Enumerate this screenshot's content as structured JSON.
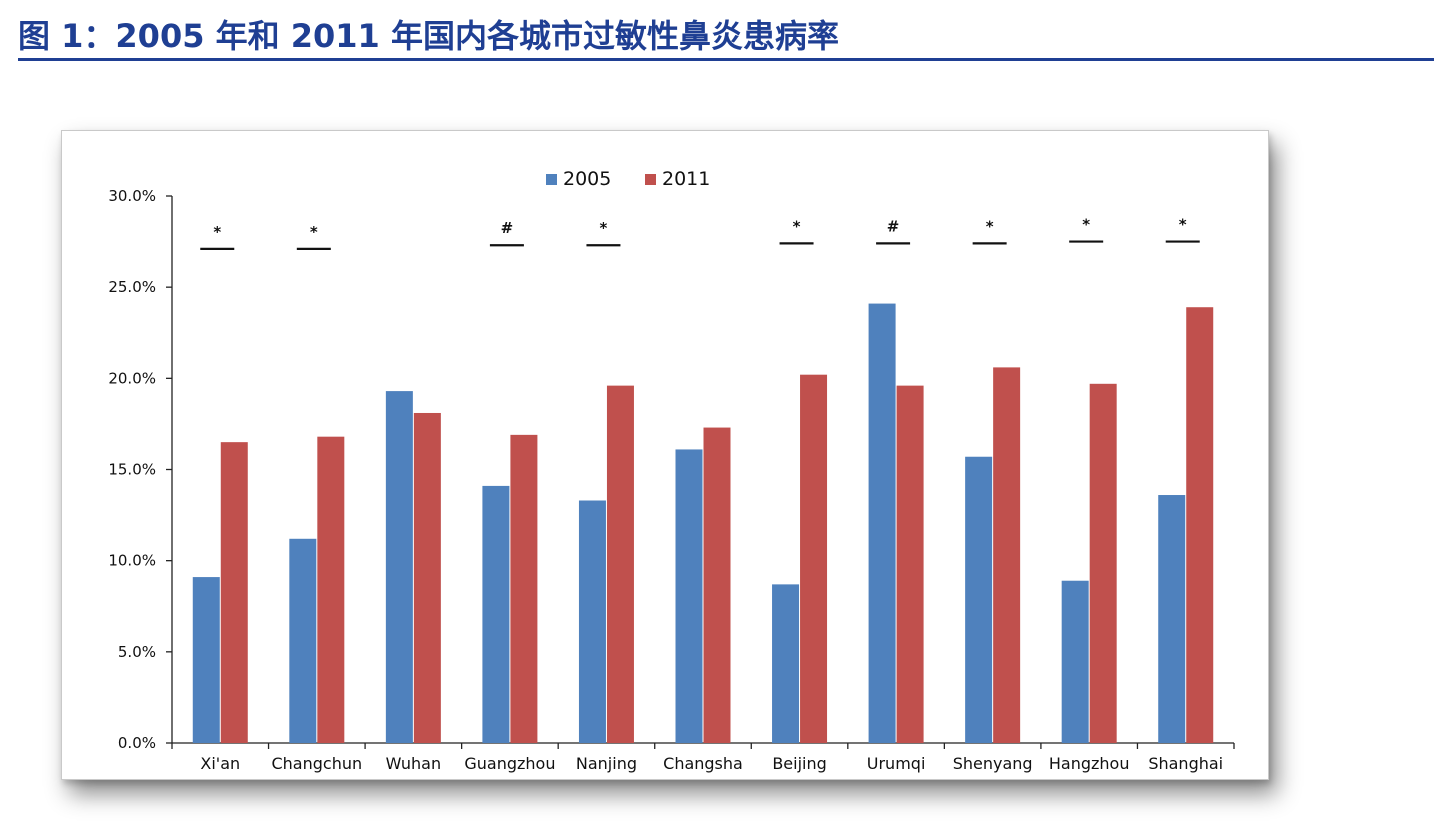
{
  "page": {
    "title": "图 1：2005 年和 2011 年国内各城市过敏性鼻炎患病率"
  },
  "colors": {
    "title": "#1f3f93",
    "series_2005": "#4f81bd",
    "series_2011": "#c0504d"
  },
  "chart_data": {
    "type": "bar",
    "title": "",
    "xlabel": "",
    "ylabel": "",
    "ylim": [
      0,
      30
    ],
    "y_ticks": [
      "0.0%",
      "5.0%",
      "10.0%",
      "15.0%",
      "20.0%",
      "25.0%",
      "30.0%"
    ],
    "y_tick_values": [
      0,
      5,
      10,
      15,
      20,
      25,
      30
    ],
    "grid": false,
    "legend_position": "top-center",
    "categories": [
      "Xi'an",
      "Changchun",
      "Wuhan",
      "Guangzhou",
      "Nanjing",
      "Changsha",
      "Beijing",
      "Urumqi",
      "Shenyang",
      "Hangzhou",
      "Shanghai"
    ],
    "series": [
      {
        "name": "2005",
        "color": "#4f81bd",
        "values": [
          9.1,
          11.2,
          19.3,
          14.1,
          13.3,
          16.1,
          8.7,
          24.1,
          15.7,
          8.9,
          13.6
        ]
      },
      {
        "name": "2011",
        "color": "#c0504d",
        "values": [
          16.5,
          16.8,
          18.1,
          16.9,
          19.6,
          17.3,
          20.2,
          19.6,
          20.6,
          19.7,
          23.9
        ]
      }
    ],
    "annotations": [
      {
        "category": "Xi'an",
        "symbol": "*",
        "level": 27.1
      },
      {
        "category": "Changchun",
        "symbol": "*",
        "level": 27.1
      },
      {
        "category": "Wuhan",
        "symbol": "",
        "level": null
      },
      {
        "category": "Guangzhou",
        "symbol": "#",
        "level": 27.3
      },
      {
        "category": "Nanjing",
        "symbol": "*",
        "level": 27.3
      },
      {
        "category": "Changsha",
        "symbol": "",
        "level": null
      },
      {
        "category": "Beijing",
        "symbol": "*",
        "level": 27.4
      },
      {
        "category": "Urumqi",
        "symbol": "#",
        "level": 27.4
      },
      {
        "category": "Shenyang",
        "symbol": "*",
        "level": 27.4
      },
      {
        "category": "Hangzhou",
        "symbol": "*",
        "level": 27.5
      },
      {
        "category": "Shanghai",
        "symbol": "*",
        "level": 27.5
      }
    ]
  }
}
